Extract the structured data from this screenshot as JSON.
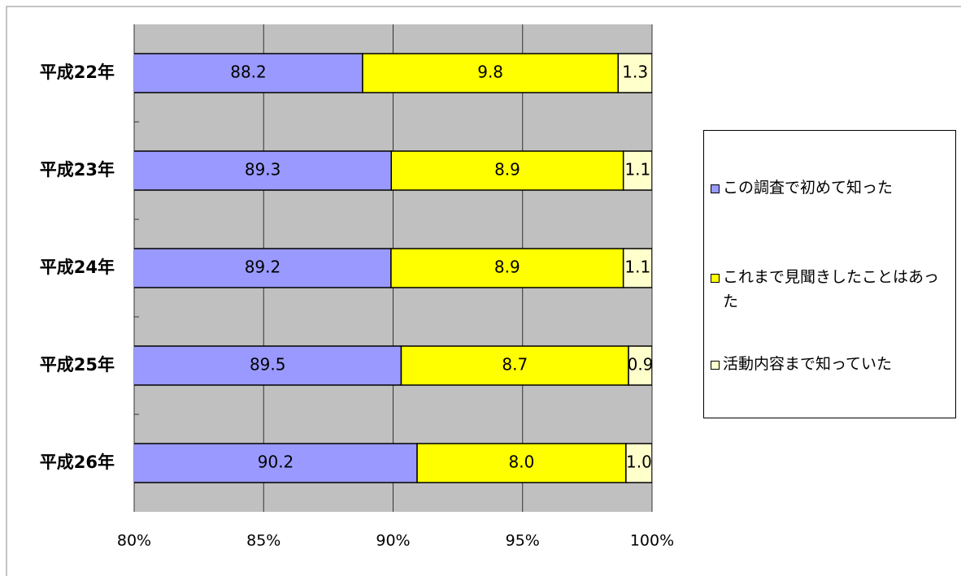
{
  "chart_data": {
    "type": "bar",
    "orientation": "horizontal",
    "stacked": "percent",
    "categories": [
      "平成22年",
      "平成23年",
      "平成24年",
      "平成25年",
      "平成26年"
    ],
    "series": [
      {
        "name": "この調査で初めて知った",
        "color": "#9999ff",
        "values": [
          88.2,
          89.3,
          89.2,
          89.5,
          90.2
        ],
        "value_labels": [
          "88.2",
          "89.3",
          "89.2",
          "89.5",
          "90.2"
        ]
      },
      {
        "name": "これまで見聞きしたことはあった",
        "color": "#ffff00",
        "values": [
          9.8,
          8.9,
          8.9,
          8.7,
          8
        ],
        "value_labels": [
          "9.8",
          "8.9",
          "8.9",
          "8.7",
          "8.0"
        ]
      },
      {
        "name": "活動内容まで知っていた",
        "color": "#ffffcc",
        "values": [
          1.3,
          1.1,
          1.1,
          0.9,
          1
        ],
        "value_labels": [
          "1.3",
          "1.1",
          "1.1",
          "0.9",
          "1.0"
        ]
      }
    ],
    "xlim": [
      80,
      100
    ],
    "xticks": [
      {
        "value": 80,
        "label": "80%"
      },
      {
        "value": 85,
        "label": "85%"
      },
      {
        "value": 90,
        "label": "90%"
      },
      {
        "value": 95,
        "label": "95%"
      },
      {
        "value": 100,
        "label": "100%"
      }
    ],
    "grid": true,
    "legend": "right"
  }
}
